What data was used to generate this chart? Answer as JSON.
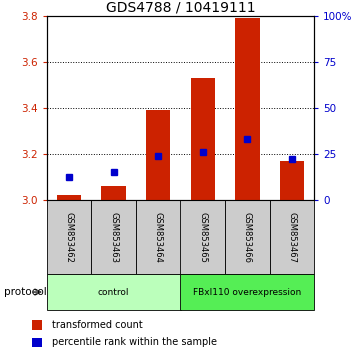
{
  "title": "GDS4788 / 10419111",
  "samples": [
    "GSM853462",
    "GSM853463",
    "GSM853464",
    "GSM853465",
    "GSM853466",
    "GSM853467"
  ],
  "red_values": [
    3.02,
    3.06,
    3.39,
    3.53,
    3.79,
    3.17
  ],
  "blue_values": [
    3.1,
    3.12,
    3.19,
    3.21,
    3.265,
    3.18
  ],
  "ylim_left": [
    3.0,
    3.8
  ],
  "ylim_right": [
    0,
    100
  ],
  "yticks_left": [
    3.0,
    3.2,
    3.4,
    3.6,
    3.8
  ],
  "yticks_right": [
    0,
    25,
    50,
    75,
    100
  ],
  "ytick_labels_right": [
    "0",
    "25",
    "50",
    "75",
    "100%"
  ],
  "left_color": "#cc2200",
  "right_color": "#0000cc",
  "bar_width": 0.55,
  "protocol_groups": [
    {
      "label": "control",
      "samples": [
        0,
        1,
        2
      ],
      "color": "#bbffbb"
    },
    {
      "label": "FBxl110 overexpression",
      "samples": [
        3,
        4,
        5
      ],
      "color": "#55ee55"
    }
  ],
  "protocol_label": "protocol",
  "legend_red": "transformed count",
  "legend_blue": "percentile rank within the sample",
  "label_bg_color": "#cccccc",
  "title_fontsize": 10,
  "tick_fontsize": 7.5,
  "sample_fontsize": 6.0
}
